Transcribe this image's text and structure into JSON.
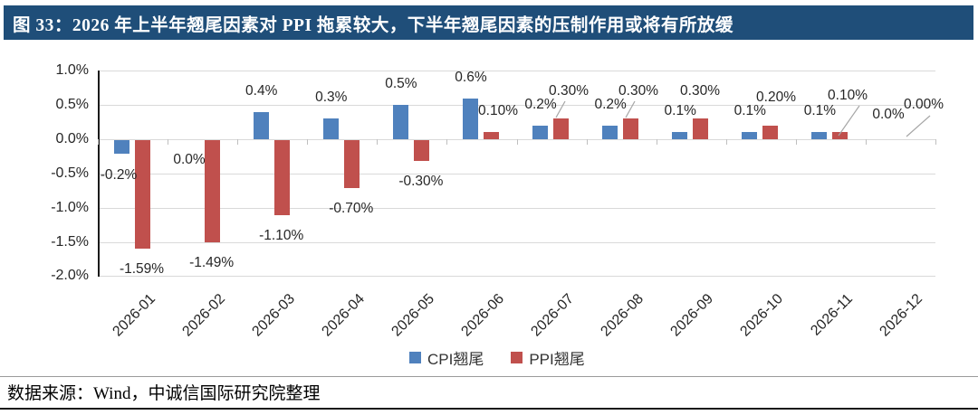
{
  "title": {
    "text": "图 33：2026 年上半年翘尾因素对 PPI 拖累较大，下半年翘尾因素的压制作用或将有所放缓"
  },
  "colors": {
    "title_bar": "#1F4E79",
    "cpi_blue": "#4F81BD",
    "ppi_red": "#C0504D",
    "gridline": "#D9D9D9"
  },
  "chart_data": {
    "type": "bar",
    "title": "",
    "xlabel": "",
    "ylabel": "",
    "grid": true,
    "legend_position": "bottom",
    "categories": [
      "2026-01",
      "2026-02",
      "2026-03",
      "2026-04",
      "2026-05",
      "2026-06",
      "2026-07",
      "2026-08",
      "2026-09",
      "2026-10",
      "2026-11",
      "2026-12"
    ],
    "series": [
      {
        "name": "CPI翘尾",
        "color": "#4F81BD",
        "values": [
          -0.2,
          0.0,
          0.4,
          0.3,
          0.5,
          0.6,
          0.2,
          0.2,
          0.1,
          0.1,
          0.1,
          0.0
        ],
        "labels": [
          "-0.2%",
          "0.0%",
          "0.4%",
          "0.3%",
          "0.5%",
          "0.6%",
          "0.2%",
          "0.2%",
          "0.1%",
          "0.1%",
          "0.1%",
          "0.0%"
        ]
      },
      {
        "name": "PPI翘尾",
        "color": "#C0504D",
        "values": [
          -1.59,
          -1.49,
          -1.1,
          -0.7,
          -0.3,
          0.1,
          0.3,
          0.3,
          0.3,
          0.2,
          0.1,
          0.0
        ],
        "labels": [
          "-1.59%",
          "-1.49%",
          "-1.10%",
          "-0.70%",
          "-0.30%",
          "0.10%",
          "0.30%",
          "0.30%",
          "0.30%",
          "0.20%",
          "0.10%",
          "0.00%"
        ]
      }
    ],
    "y_axis": {
      "tick_labels": [
        "1.0%",
        "0.5%",
        "0.0%",
        "-0.5%",
        "-1.0%",
        "-1.5%",
        "-2.0%"
      ],
      "tick_values": [
        1.0,
        0.5,
        0.0,
        -0.5,
        -1.0,
        -1.5,
        -2.0
      ],
      "min": -2.0,
      "max": 1.0
    }
  },
  "footer": {
    "source": "数据来源：Wind，中诚信国际研究院整理"
  }
}
